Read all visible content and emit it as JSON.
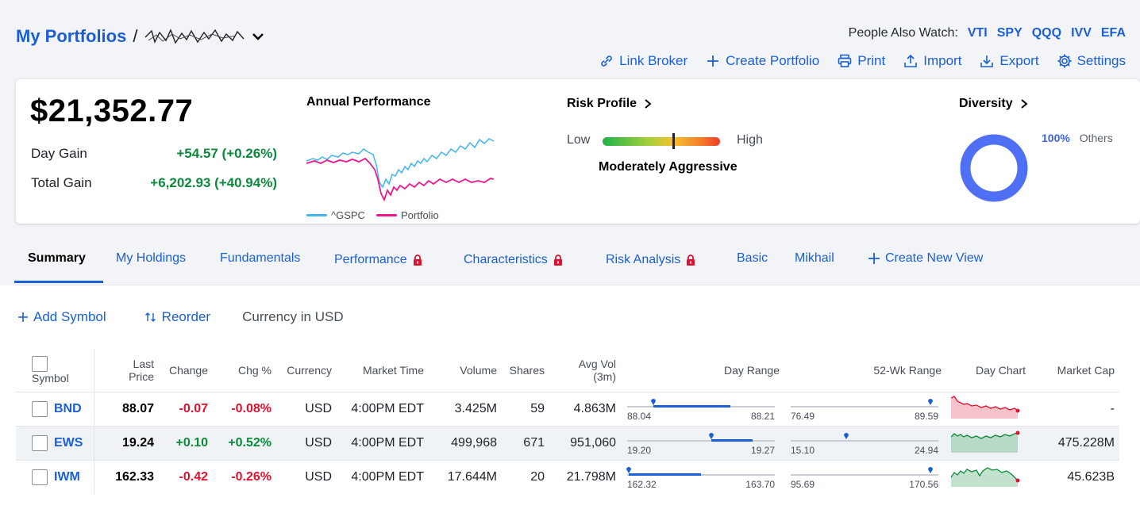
{
  "header": {
    "title": "My Portfolios",
    "separator": "/",
    "people_watch_label": "People Also Watch:",
    "people_watch": [
      "VTI",
      "SPY",
      "QQQ",
      "IVV",
      "EFA"
    ],
    "actions": [
      {
        "label": "Link Broker",
        "icon": "link-icon"
      },
      {
        "label": "Create Portfolio",
        "icon": "plus-icon"
      },
      {
        "label": "Print",
        "icon": "print-icon"
      },
      {
        "label": "Import",
        "icon": "upload-icon"
      },
      {
        "label": "Export",
        "icon": "download-icon"
      },
      {
        "label": "Settings",
        "icon": "gear-icon"
      }
    ]
  },
  "summary": {
    "value": "$21,352.77",
    "day_gain_label": "Day Gain",
    "day_gain": "+54.57 (+0.26%)",
    "total_gain_label": "Total Gain",
    "total_gain": "+6,202.93 (+40.94%)",
    "perf_title": "Annual Performance",
    "legend": [
      {
        "label": "^GSPC",
        "color": "#3fb6ee"
      },
      {
        "label": "Portfolio",
        "color": "#ee178f"
      }
    ],
    "risk_title": "Risk Profile",
    "risk_low": "Low",
    "risk_high": "High",
    "risk_level": "Moderately Aggressive",
    "diversity_title": "Diversity",
    "diversity_pct": "100%",
    "diversity_label": "Others"
  },
  "tabs": [
    {
      "label": "Summary",
      "locked": false,
      "active": true
    },
    {
      "label": "My Holdings",
      "locked": false
    },
    {
      "label": "Fundamentals",
      "locked": false
    },
    {
      "label": "Performance",
      "locked": true
    },
    {
      "label": "Characteristics",
      "locked": true
    },
    {
      "label": "Risk Analysis",
      "locked": true
    },
    {
      "label": "Basic",
      "locked": false
    },
    {
      "label": "Mikhail",
      "locked": false
    },
    {
      "label": "Create New View",
      "locked": false
    }
  ],
  "toolbar": {
    "add_symbol": "Add Symbol",
    "reorder": "Reorder",
    "currency": "Currency in USD"
  },
  "table": {
    "columns": {
      "symbol": "Symbol",
      "last_price": "Last\nPrice",
      "change": "Change",
      "chg_pct": "Chg %",
      "currency": "Currency",
      "market_time": "Market Time",
      "volume": "Volume",
      "shares": "Shares",
      "avg_vol": "Avg Vol\n(3m)",
      "day_range": "Day Range",
      "wk52_range": "52-Wk Range",
      "day_chart": "Day Chart",
      "market_cap": "Market Cap"
    },
    "rows": [
      {
        "symbol": "BND",
        "last": "88.07",
        "change": "-0.07",
        "chg_pct": "-0.08%",
        "currency": "USD",
        "time": "4:00PM EDT",
        "volume": "3.425M",
        "shares": "59",
        "avg_vol": "4.863M",
        "day_lo": "88.04",
        "day_hi": "88.21",
        "wk_lo": "76.49",
        "wk_hi": "89.59",
        "market_cap": "-",
        "dir": "neg",
        "day_pos": 0.18,
        "wk_pos": 0.99,
        "day_fill": [
          0.18,
          0.7
        ]
      },
      {
        "symbol": "EWS",
        "last": "19.24",
        "change": "+0.10",
        "chg_pct": "+0.52%",
        "currency": "USD",
        "time": "4:00PM EDT",
        "volume": "499,968",
        "shares": "671",
        "avg_vol": "951,060",
        "day_lo": "19.20",
        "day_hi": "19.27",
        "wk_lo": "15.10",
        "wk_hi": "24.94",
        "market_cap": "475.228M",
        "dir": "pos",
        "day_pos": 0.57,
        "wk_pos": 0.42,
        "day_fill": [
          0.57,
          0.85
        ]
      },
      {
        "symbol": "IWM",
        "last": "162.33",
        "change": "-0.42",
        "chg_pct": "-0.26%",
        "currency": "USD",
        "time": "4:00PM EDT",
        "volume": "17.644M",
        "shares": "20",
        "avg_vol": "21.798M",
        "day_lo": "162.32",
        "day_hi": "163.70",
        "wk_lo": "95.69",
        "wk_hi": "170.56",
        "market_cap": "45.623B",
        "dir": "neg",
        "day_pos": 0.01,
        "wk_pos": 0.99,
        "day_fill": [
          0.01,
          0.5
        ]
      }
    ]
  }
}
